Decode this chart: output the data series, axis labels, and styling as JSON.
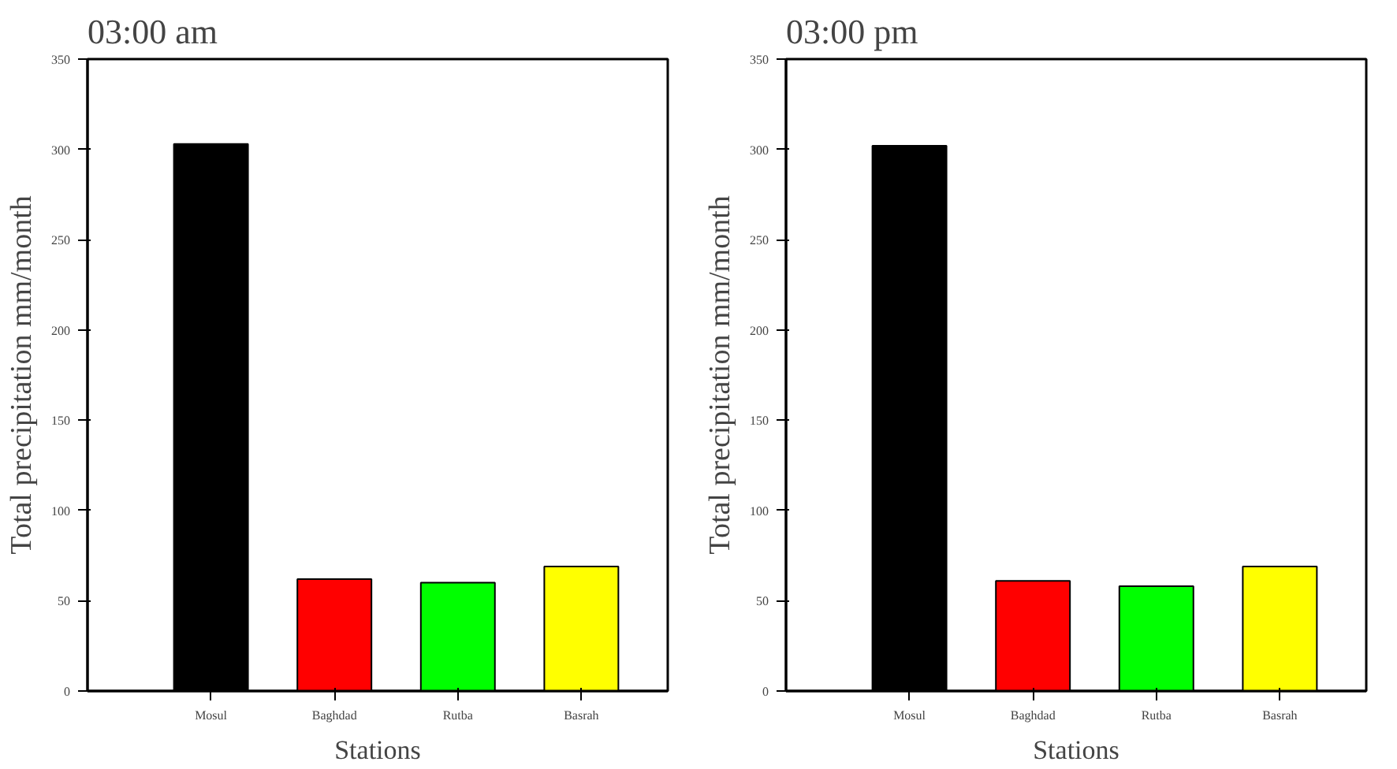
{
  "chart_data": [
    {
      "type": "bar",
      "title": "03:00 am",
      "xlabel": "Stations",
      "ylabel": "Total precipitation mm/month",
      "categories": [
        "Mosul",
        "Baghdad",
        "Rutba",
        "Basrah"
      ],
      "values": [
        303,
        62,
        60,
        69
      ],
      "colors": [
        "#000000",
        "#ff0000",
        "#00ff00",
        "#ffff00"
      ],
      "ylim": [
        0,
        350
      ],
      "yticks": [
        0,
        50,
        100,
        150,
        200,
        250,
        300,
        350
      ]
    },
    {
      "type": "bar",
      "title": "03:00 pm",
      "xlabel": "Stations",
      "ylabel": "Total precipitation mm/month",
      "categories": [
        "Mosul",
        "Baghdad",
        "Rutba",
        "Basrah"
      ],
      "values": [
        302,
        61,
        58,
        69
      ],
      "colors": [
        "#000000",
        "#ff0000",
        "#00ff00",
        "#ffff00"
      ],
      "ylim": [
        0,
        350
      ],
      "yticks": [
        0,
        50,
        100,
        150,
        200,
        250,
        300,
        350
      ]
    }
  ]
}
